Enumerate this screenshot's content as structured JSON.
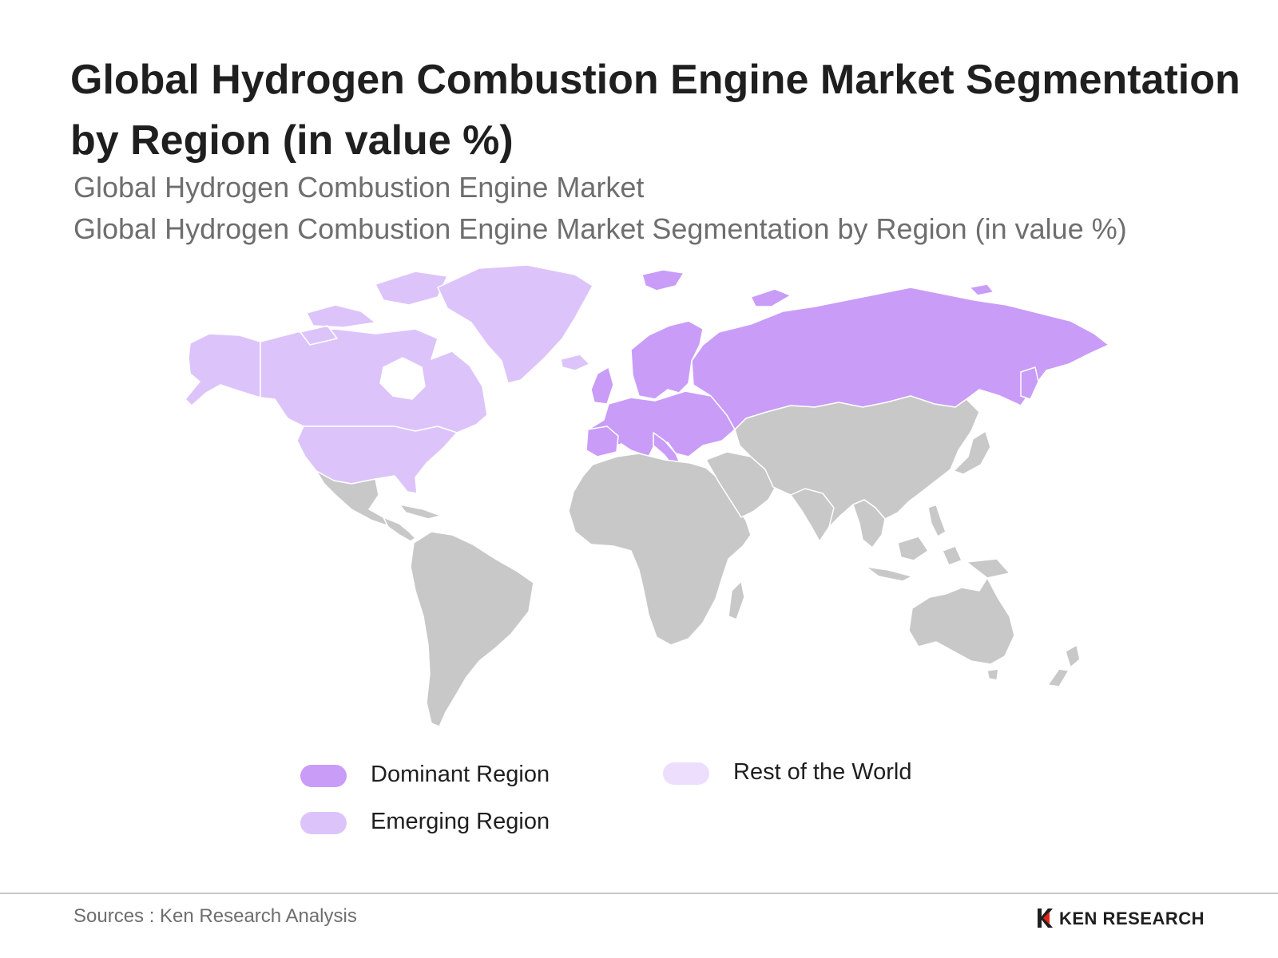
{
  "title": "Global Hydrogen Combustion Engine Market Segmentation by Region (in value %)",
  "subtitle_1": "Global Hydrogen Combustion Engine Market",
  "subtitle_2": "Global Hydrogen Combustion Engine Market Segmentation by Region (in value %)",
  "colors": {
    "dominant": "#c99cf8",
    "emerging": "#dcc4fb",
    "rest_of_world": "#ecdefc",
    "other_land": "#c8c8c8"
  },
  "map": {
    "region_assignments": {
      "dominant": [
        "Europe",
        "Russia"
      ],
      "emerging": [
        "North America",
        "Greenland"
      ],
      "unhighlighted": [
        "South America",
        "Central America",
        "Africa",
        "Middle East",
        "Asia",
        "Oceania"
      ]
    }
  },
  "legend": [
    {
      "label": "Dominant Region",
      "color_key": "dominant"
    },
    {
      "label": "Emerging Region",
      "color_key": "emerging"
    },
    {
      "label": "Rest of the World",
      "color_key": "rest_of_world"
    }
  ],
  "source": "Sources : Ken Research Analysis",
  "logo": {
    "text": "KEN RESEARCH",
    "icon": "ken-research-logo-icon"
  }
}
